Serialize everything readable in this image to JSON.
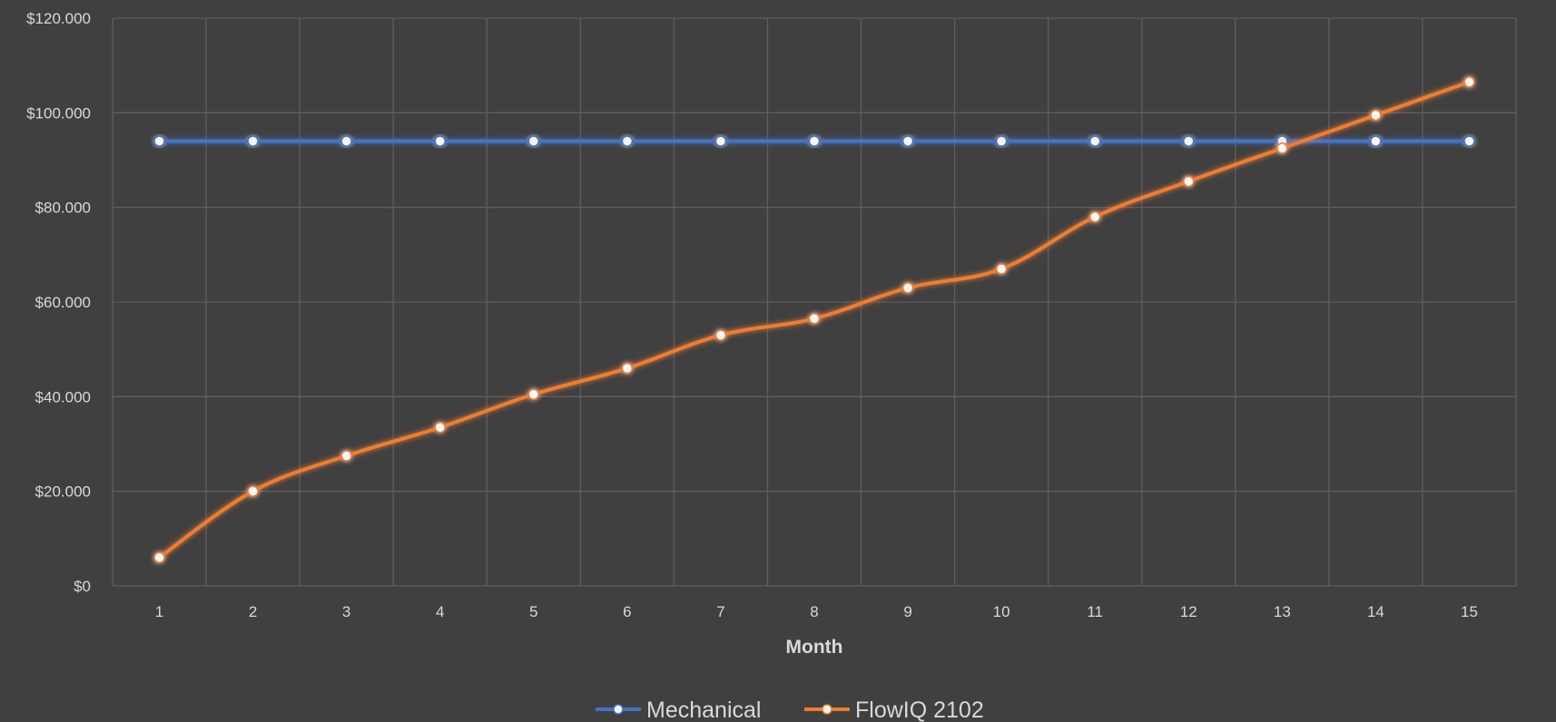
{
  "chart_data": {
    "type": "line",
    "xlabel": "Month",
    "ylabel": "",
    "title": "",
    "x": [
      1,
      2,
      3,
      4,
      5,
      6,
      7,
      8,
      9,
      10,
      11,
      12,
      13,
      14,
      15
    ],
    "ylim": [
      0,
      120000
    ],
    "y_ticks": [
      0,
      20000,
      40000,
      60000,
      80000,
      100000,
      120000
    ],
    "y_tick_labels": [
      "$0",
      "$20.000",
      "$40.000",
      "$60.000",
      "$80.000",
      "$100.000",
      "$120.000"
    ],
    "grid": true,
    "legend_position": "bottom",
    "series": [
      {
        "name": "Mechanical",
        "color": "#4472c4",
        "values": [
          94000,
          94000,
          94000,
          94000,
          94000,
          94000,
          94000,
          94000,
          94000,
          94000,
          94000,
          94000,
          94000,
          94000,
          94000
        ]
      },
      {
        "name": "FlowIQ 2102",
        "color": "#ed7d31",
        "values": [
          6000,
          20000,
          27500,
          33500,
          40500,
          46000,
          53000,
          56500,
          63000,
          67000,
          78000,
          85500,
          92500,
          99500,
          106500
        ]
      }
    ]
  }
}
